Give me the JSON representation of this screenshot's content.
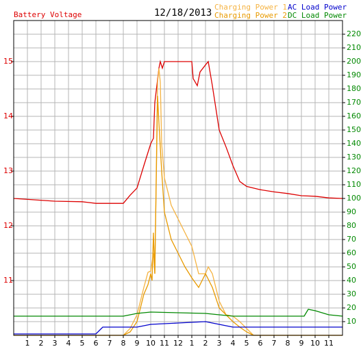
{
  "chart_data": {
    "type": "line",
    "title": "12/18/2013",
    "xlim": [
      0,
      24
    ],
    "xticks": [
      1,
      2,
      3,
      4,
      5,
      6,
      7,
      8,
      9,
      10,
      11,
      12,
      {
        "value": 13,
        "label": "1"
      },
      {
        "value": 14,
        "label": "2"
      },
      {
        "value": 15,
        "label": "3"
      },
      {
        "value": 16,
        "label": "4"
      },
      {
        "value": 17,
        "label": "5"
      },
      {
        "value": 18,
        "label": "6"
      },
      {
        "value": 19,
        "label": "7"
      },
      {
        "value": 20,
        "label": "8"
      },
      {
        "value": 21,
        "label": "9"
      },
      {
        "value": 22,
        "label": "10"
      },
      {
        "value": 23,
        "label": "11"
      }
    ],
    "ylim": [
      10,
      15.75
    ],
    "yticks": [
      11,
      12,
      13,
      14,
      15
    ],
    "y2lim": [
      0,
      230
    ],
    "y2ticks": [
      10,
      20,
      30,
      40,
      50,
      60,
      70,
      80,
      90,
      100,
      110,
      120,
      130,
      140,
      150,
      160,
      170,
      180,
      190,
      200,
      210,
      220
    ],
    "grid": true,
    "series": [
      {
        "name": "Battery Voltage",
        "color": "#dd0000",
        "axis": "y",
        "x": [
          0,
          3,
          5,
          6,
          8,
          8.5,
          9,
          9.5,
          10,
          10.2,
          10.3,
          10.6,
          10.7,
          10.85,
          11,
          13,
          13.1,
          13.4,
          13.6,
          14,
          14.2,
          14.5,
          15,
          15.5,
          16,
          16.5,
          17,
          18,
          19,
          20,
          21,
          22,
          23,
          24
        ],
        "values": [
          12.5,
          12.45,
          12.44,
          12.41,
          12.41,
          12.56,
          12.69,
          13.1,
          13.5,
          13.6,
          14.25,
          14.88,
          15.0,
          14.88,
          15.0,
          15.0,
          14.69,
          14.56,
          14.81,
          14.94,
          15.0,
          14.56,
          13.75,
          13.44,
          13.1,
          12.81,
          12.72,
          12.66,
          12.62,
          12.59,
          12.55,
          12.54,
          12.51,
          12.5
        ]
      },
      {
        "name": "Charging Power 1",
        "color": "#f5b342",
        "axis": "y2",
        "x": [
          0,
          8,
          8.5,
          9,
          9.5,
          9.8,
          10,
          10.2,
          10.3,
          10.5,
          10.6,
          10.7,
          10.8,
          11,
          11.5,
          12,
          12.5,
          13,
          13.5,
          14,
          14.2,
          14.5,
          15,
          15.5,
          16,
          16.5,
          17,
          17.5,
          24
        ],
        "values": [
          0,
          0,
          5,
          15,
          35,
          46,
          47,
          60,
          45,
          185,
          195,
          185,
          140,
          115,
          95,
          85,
          75,
          65,
          45,
          45,
          50,
          45,
          25,
          15,
          14,
          10,
          5,
          0,
          0
        ]
      },
      {
        "name": "Charging Power 2",
        "color": "#e89a00",
        "axis": "y2",
        "x": [
          0,
          8,
          8.5,
          9,
          9.5,
          9.8,
          10,
          10.1,
          10.2,
          10.3,
          10.5,
          10.6,
          10.8,
          11,
          11.5,
          12,
          12.5,
          13,
          13.5,
          14,
          14.5,
          15,
          15.5,
          16,
          16.5,
          17,
          17.5,
          24
        ],
        "values": [
          0,
          0,
          2.5,
          10,
          30,
          37,
          45,
          40,
          75,
          45,
          175,
          155,
          120,
          90,
          70,
          60,
          50,
          42,
          35,
          45,
          35,
          20,
          15,
          10,
          6,
          2.5,
          0,
          0
        ]
      },
      {
        "name": "AC Load Power",
        "color": "#0000cc",
        "axis": "y2",
        "x": [
          0,
          6,
          6.5,
          9,
          10,
          12,
          14,
          15,
          16,
          24
        ],
        "values": [
          1,
          1,
          6,
          6,
          8,
          9,
          10,
          8,
          6,
          6
        ]
      },
      {
        "name": "DC Load Power",
        "color": "#008800",
        "axis": "y2",
        "x": [
          0,
          8,
          9,
          10,
          14,
          15,
          16,
          21.2,
          21.5,
          22,
          23,
          24
        ],
        "values": [
          14,
          14,
          16,
          17,
          16,
          15,
          14,
          14,
          19,
          18,
          15,
          14
        ]
      }
    ]
  }
}
